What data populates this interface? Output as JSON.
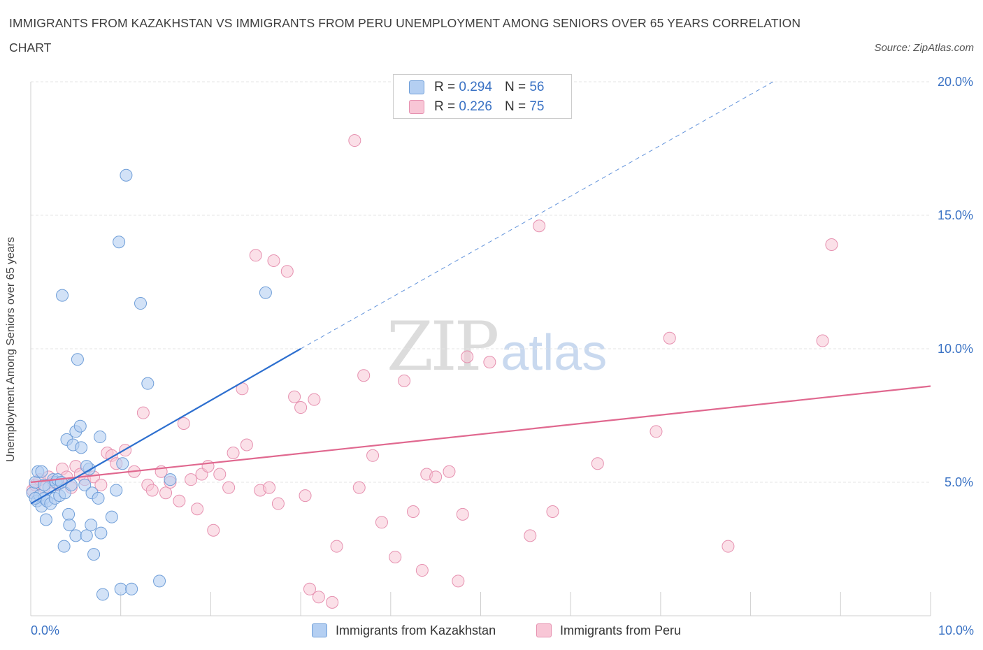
{
  "title_line1": "IMMIGRANTS FROM KAZAKHSTAN VS IMMIGRANTS FROM PERU UNEMPLOYMENT AMONG SENIORS OVER 65 YEARS CORRELATION",
  "title_line2": "CHART",
  "source": "Source: ZipAtlas.com",
  "watermark_zip": "ZIP",
  "watermark_atlas": "atlas",
  "colors": {
    "kazakhstan_fill": "#b4cff2",
    "kazakhstan_stroke": "#6f9ed8",
    "kazakhstan_line": "#2d6fcf",
    "peru_fill": "#f8c6d6",
    "peru_stroke": "#e691b0",
    "peru_line": "#e0688f",
    "tick_text": "#3a72c4",
    "grid": "#e4e4e4"
  },
  "legend": {
    "kazakhstan": {
      "r_label": "R =",
      "r_value": "0.294",
      "n_label": "N =",
      "n_value": "56"
    },
    "peru": {
      "r_label": "R =",
      "r_value": "0.226",
      "n_label": "N =",
      "n_value": "75"
    }
  },
  "chart_data": {
    "type": "scatter",
    "title": "IMMIGRANTS FROM KAZAKHSTAN VS IMMIGRANTS FROM PERU UNEMPLOYMENT AMONG SENIORS OVER 65 YEARS CORRELATION CHART",
    "xlabel": "",
    "ylabel": "Unemployment Among Seniors over 65 years",
    "xlim": [
      0,
      10
    ],
    "ylim": [
      0,
      20
    ],
    "x_ticks": [
      0,
      10
    ],
    "x_tick_labels": [
      "0.0%",
      "10.0%"
    ],
    "y_ticks": [
      5,
      10,
      15,
      20
    ],
    "y_tick_labels": [
      "5.0%",
      "10.0%",
      "15.0%",
      "20.0%"
    ],
    "grid": true,
    "legend_position": "top-center",
    "series": [
      {
        "name": "Immigrants from Kazakhstan",
        "points": [
          [
            0.02,
            4.6
          ],
          [
            0.05,
            5.0
          ],
          [
            0.07,
            4.3
          ],
          [
            0.08,
            5.4
          ],
          [
            0.1,
            4.5
          ],
          [
            0.12,
            4.1
          ],
          [
            0.12,
            5.4
          ],
          [
            0.15,
            4.4
          ],
          [
            0.17,
            3.6
          ],
          [
            0.18,
            4.3
          ],
          [
            0.2,
            4.8
          ],
          [
            0.22,
            4.2
          ],
          [
            0.25,
            5.1
          ],
          [
            0.27,
            4.4
          ],
          [
            0.28,
            5.0
          ],
          [
            0.3,
            5.1
          ],
          [
            0.32,
            4.5
          ],
          [
            0.35,
            12.0
          ],
          [
            0.37,
            2.6
          ],
          [
            0.38,
            4.6
          ],
          [
            0.4,
            6.6
          ],
          [
            0.42,
            3.8
          ],
          [
            0.43,
            3.4
          ],
          [
            0.45,
            4.9
          ],
          [
            0.47,
            6.4
          ],
          [
            0.5,
            6.9
          ],
          [
            0.5,
            3.0
          ],
          [
            0.52,
            9.6
          ],
          [
            0.55,
            7.1
          ],
          [
            0.56,
            6.3
          ],
          [
            0.6,
            4.9
          ],
          [
            0.62,
            3.0
          ],
          [
            0.65,
            5.5
          ],
          [
            0.67,
            3.4
          ],
          [
            0.68,
            4.6
          ],
          [
            0.7,
            2.3
          ],
          [
            0.75,
            4.4
          ],
          [
            0.77,
            6.7
          ],
          [
            0.78,
            3.1
          ],
          [
            0.8,
            0.8
          ],
          [
            0.9,
            3.7
          ],
          [
            0.95,
            4.7
          ],
          [
            0.98,
            14.0
          ],
          [
            1.0,
            1.0
          ],
          [
            1.02,
            5.7
          ],
          [
            1.06,
            16.5
          ],
          [
            1.12,
            1.0
          ],
          [
            1.22,
            11.7
          ],
          [
            1.3,
            8.7
          ],
          [
            1.43,
            1.3
          ],
          [
            1.55,
            5.1
          ],
          [
            2.61,
            12.1
          ],
          [
            0.15,
            4.9
          ],
          [
            0.05,
            4.4
          ],
          [
            0.34,
            5.0
          ],
          [
            0.62,
            5.6
          ]
        ],
        "trend": {
          "x1": 0,
          "y1": 4.2,
          "x2": 3.0,
          "y2": 10.0,
          "dashed_x2": 8.25,
          "dashed_y2": 20.0
        }
      },
      {
        "name": "Immigrants from Peru",
        "points": [
          [
            0.02,
            4.7
          ],
          [
            0.05,
            4.9
          ],
          [
            0.1,
            5.1
          ],
          [
            0.15,
            4.8
          ],
          [
            0.2,
            5.2
          ],
          [
            0.25,
            5.0
          ],
          [
            0.3,
            4.9
          ],
          [
            0.35,
            5.5
          ],
          [
            0.4,
            5.2
          ],
          [
            0.45,
            4.8
          ],
          [
            0.5,
            5.6
          ],
          [
            0.55,
            5.3
          ],
          [
            0.6,
            5.1
          ],
          [
            0.7,
            5.2
          ],
          [
            0.78,
            4.9
          ],
          [
            0.85,
            6.1
          ],
          [
            0.9,
            6.0
          ],
          [
            0.95,
            5.7
          ],
          [
            1.05,
            6.2
          ],
          [
            1.15,
            5.4
          ],
          [
            1.25,
            7.6
          ],
          [
            1.3,
            4.9
          ],
          [
            1.35,
            4.7
          ],
          [
            1.45,
            5.4
          ],
          [
            1.5,
            4.6
          ],
          [
            1.55,
            5.0
          ],
          [
            1.65,
            4.3
          ],
          [
            1.7,
            7.2
          ],
          [
            1.78,
            5.1
          ],
          [
            1.85,
            4.0
          ],
          [
            1.9,
            5.3
          ],
          [
            1.97,
            5.6
          ],
          [
            2.03,
            3.2
          ],
          [
            2.1,
            5.3
          ],
          [
            2.2,
            4.8
          ],
          [
            2.25,
            6.1
          ],
          [
            2.35,
            8.5
          ],
          [
            2.4,
            6.4
          ],
          [
            2.5,
            13.5
          ],
          [
            2.55,
            4.7
          ],
          [
            2.65,
            4.8
          ],
          [
            2.7,
            13.3
          ],
          [
            2.75,
            4.2
          ],
          [
            2.85,
            12.9
          ],
          [
            2.93,
            8.2
          ],
          [
            3.0,
            7.8
          ],
          [
            3.05,
            4.5
          ],
          [
            3.1,
            1.0
          ],
          [
            3.15,
            8.1
          ],
          [
            3.2,
            0.7
          ],
          [
            3.35,
            0.5
          ],
          [
            3.4,
            2.6
          ],
          [
            3.6,
            17.8
          ],
          [
            3.65,
            4.8
          ],
          [
            3.7,
            9.0
          ],
          [
            3.8,
            6.0
          ],
          [
            3.9,
            3.5
          ],
          [
            4.05,
            2.2
          ],
          [
            4.15,
            8.8
          ],
          [
            4.25,
            3.9
          ],
          [
            4.35,
            1.7
          ],
          [
            4.4,
            5.3
          ],
          [
            4.5,
            5.2
          ],
          [
            4.65,
            5.4
          ],
          [
            4.75,
            1.3
          ],
          [
            4.8,
            3.8
          ],
          [
            4.85,
            9.7
          ],
          [
            5.1,
            9.5
          ],
          [
            5.55,
            3.0
          ],
          [
            5.65,
            14.6
          ],
          [
            5.8,
            3.9
          ],
          [
            6.3,
            5.7
          ],
          [
            6.95,
            6.9
          ],
          [
            7.1,
            10.4
          ],
          [
            7.75,
            2.6
          ]
        ],
        "extra_points": [
          [
            8.8,
            10.3
          ],
          [
            8.9,
            13.9
          ]
        ],
        "trend": {
          "x1": 0,
          "y1": 5.0,
          "x2": 10.0,
          "y2": 8.6
        }
      }
    ]
  },
  "bottom_legend": {
    "kazakhstan": "Immigrants from Kazakhstan",
    "peru": "Immigrants from Peru"
  }
}
